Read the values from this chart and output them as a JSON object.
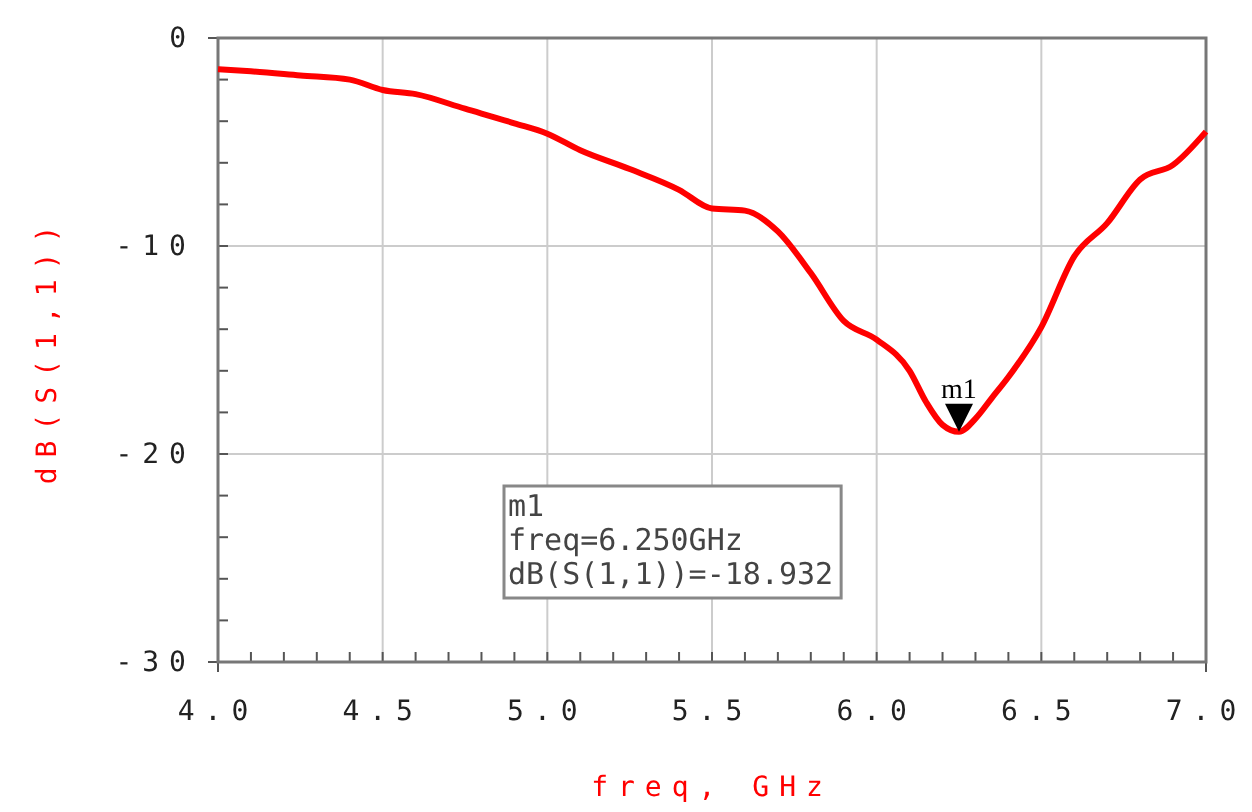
{
  "chart_data": {
    "type": "line",
    "xlabel": "freq, GHz",
    "ylabel": "dB(S(1,1))",
    "x": [
      4.0,
      4.1,
      4.25,
      4.4,
      4.5,
      4.6,
      4.75,
      4.9,
      5.0,
      5.1,
      5.25,
      5.4,
      5.5,
      5.6,
      5.7,
      5.8,
      5.9,
      6.0,
      6.1,
      6.15,
      6.2,
      6.25,
      6.3,
      6.35,
      6.4,
      6.5,
      6.6,
      6.7,
      6.8,
      6.9,
      7.0
    ],
    "series": [
      {
        "color": "#ff0000",
        "values": [
          -1.5,
          -1.6,
          -1.8,
          -2.0,
          -2.5,
          -2.7,
          -3.4,
          -4.1,
          -4.6,
          -5.4,
          -6.3,
          -7.3,
          -8.2,
          -8.3,
          -9.3,
          -11.3,
          -13.6,
          -14.5,
          -16.0,
          -17.5,
          -18.6,
          -18.932,
          -18.3,
          -17.3,
          -16.3,
          -13.9,
          -10.5,
          -8.9,
          -6.8,
          -6.1,
          -4.5
        ]
      }
    ],
    "xlim": [
      4.0,
      7.0
    ],
    "xticks": [
      {
        "value": 4,
        "label": "4.0"
      },
      {
        "value": 4.1,
        "label": null
      },
      {
        "value": 4.2,
        "label": null
      },
      {
        "value": 4.3,
        "label": null
      },
      {
        "value": 4.4,
        "label": null
      },
      {
        "value": 4.5,
        "label": "4.5"
      },
      {
        "value": 4.6,
        "label": null
      },
      {
        "value": 4.7,
        "label": null
      },
      {
        "value": 4.8,
        "label": null
      },
      {
        "value": 4.9,
        "label": null
      },
      {
        "value": 5,
        "label": "5.0"
      },
      {
        "value": 5.1,
        "label": null
      },
      {
        "value": 5.2,
        "label": null
      },
      {
        "value": 5.3,
        "label": null
      },
      {
        "value": 5.4,
        "label": null
      },
      {
        "value": 5.5,
        "label": "5.5"
      },
      {
        "value": 5.6,
        "label": null
      },
      {
        "value": 5.7,
        "label": null
      },
      {
        "value": 5.8,
        "label": null
      },
      {
        "value": 5.9,
        "label": null
      },
      {
        "value": 6,
        "label": "6.0"
      },
      {
        "value": 6.1,
        "label": null
      },
      {
        "value": 6.2,
        "label": null
      },
      {
        "value": 6.3,
        "label": null
      },
      {
        "value": 6.4,
        "label": null
      },
      {
        "value": 6.5,
        "label": "6.5"
      },
      {
        "value": 6.6,
        "label": null
      },
      {
        "value": 6.7,
        "label": null
      },
      {
        "value": 6.8,
        "label": null
      },
      {
        "value": 6.9,
        "label": null
      },
      {
        "value": 7,
        "label": "7.0"
      }
    ],
    "ylim": [
      -30,
      0
    ],
    "yticks": [
      -30,
      {
        "value": -28,
        "label": null
      },
      {
        "value": -26,
        "label": null
      },
      {
        "value": -24,
        "label": null
      },
      {
        "value": -22,
        "label": null
      },
      -20,
      {
        "value": -18,
        "label": null
      },
      {
        "value": -16,
        "label": null
      },
      {
        "value": -14,
        "label": null
      },
      {
        "value": -12,
        "label": null
      },
      -10,
      {
        "value": -8,
        "label": null
      },
      {
        "value": -6,
        "label": null
      },
      {
        "value": -4,
        "label": null
      },
      {
        "value": -2,
        "label": null
      },
      0
    ],
    "grid": true,
    "marker": "none",
    "line_style": "solid",
    "annotations": [
      {
        "text": "m1",
        "x": 6.25,
        "y": -18.932
      },
      "m1\nfreq=6.250GHz\ndB(S(1,1))=-18.932"
    ]
  }
}
